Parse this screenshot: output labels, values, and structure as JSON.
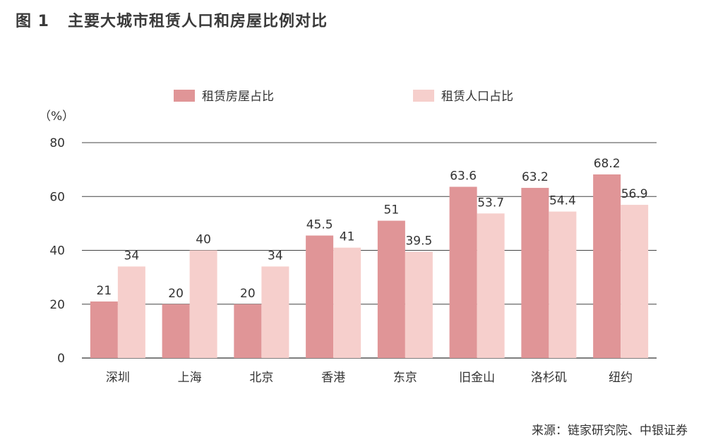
{
  "figure": {
    "title_prefix": "图 1",
    "title": "主要大城市租赁人口和房屋比例对比",
    "source": "来源：链家研究院、中银证券"
  },
  "chart_data": {
    "type": "bar",
    "title": "主要大城市租赁人口和房屋比例对比",
    "ylabel": "（%）",
    "xlabel": "",
    "ylim": [
      0,
      80
    ],
    "yticks": [
      0,
      20,
      40,
      60,
      80
    ],
    "grid": true,
    "legend_position": "top",
    "categories": [
      "深圳",
      "上海",
      "北京",
      "香港",
      "东京",
      "旧金山",
      "洛杉矶",
      "纽约"
    ],
    "series": [
      {
        "name": "租赁房屋占比",
        "color": "#e09597",
        "values": [
          21,
          20,
          20,
          45.5,
          51,
          63.6,
          63.2,
          68.2
        ]
      },
      {
        "name": "租赁人口占比",
        "color": "#f6cfcc",
        "values": [
          34,
          40,
          34,
          41,
          39.5,
          53.7,
          54.4,
          56.9
        ]
      }
    ]
  }
}
